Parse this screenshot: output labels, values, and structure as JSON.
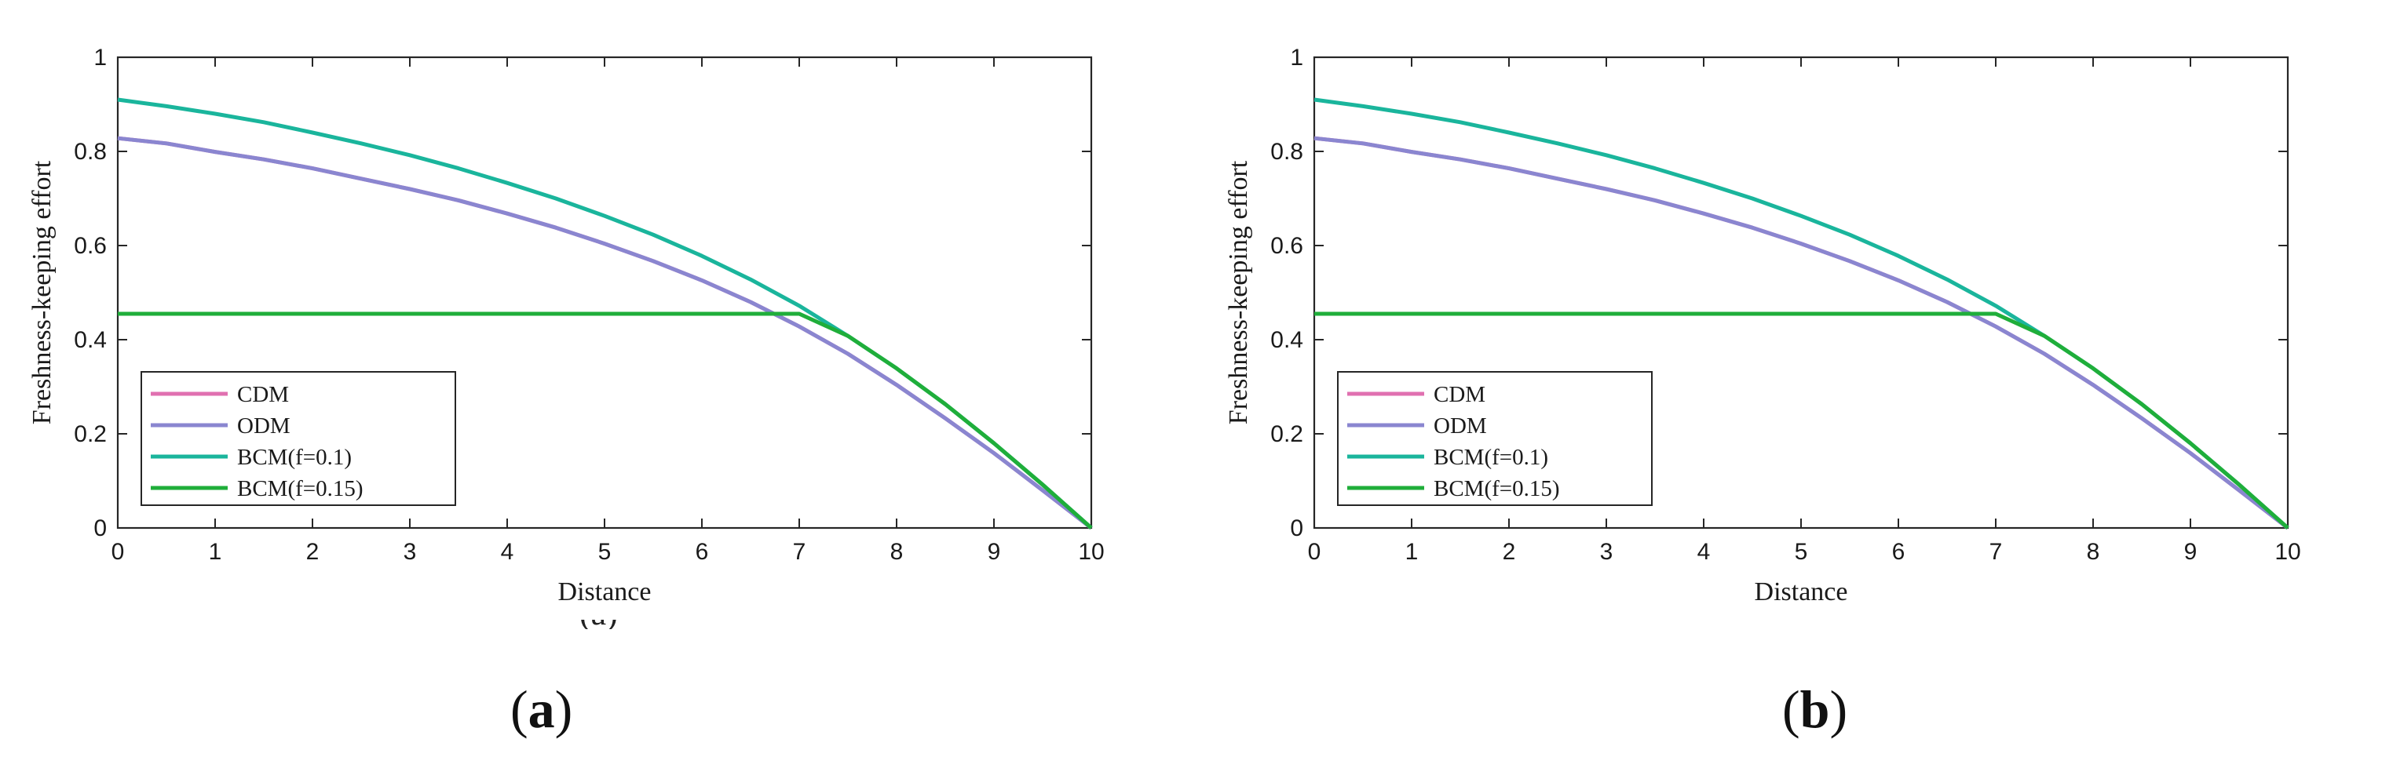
{
  "chart_data": [
    {
      "type": "line",
      "panel": "(a)",
      "xlabel": "Distance",
      "ylabel": "Freshness-keeping effort",
      "xlim": [
        0,
        10
      ],
      "ylim": [
        0,
        1
      ],
      "xticks": [
        0,
        1,
        2,
        3,
        4,
        5,
        6,
        7,
        8,
        9,
        10
      ],
      "yticks": [
        0,
        0.2,
        0.4,
        0.6,
        0.8,
        1
      ],
      "ytick_labels": [
        "0",
        "0.2",
        "0.4",
        "0.6",
        "0.8",
        "1"
      ],
      "legend_position": "bottom-left",
      "x": [
        0,
        0.5,
        1,
        1.5,
        2,
        2.5,
        3,
        3.5,
        4,
        4.5,
        5,
        5.5,
        6,
        6.5,
        7,
        7.5,
        8,
        8.5,
        9,
        9.5,
        10
      ],
      "series": [
        {
          "name": "CDM",
          "color": "#e070b0",
          "values": [
            0.828,
            0.817,
            0.799,
            0.783,
            0.764,
            0.742,
            0.72,
            0.696,
            0.668,
            0.638,
            0.604,
            0.567,
            0.526,
            0.48,
            0.428,
            0.37,
            0.304,
            0.233,
            0.159,
            0.08,
            0.0
          ]
        },
        {
          "name": "ODM",
          "color": "#8a86d0",
          "values": [
            0.828,
            0.817,
            0.799,
            0.783,
            0.764,
            0.742,
            0.72,
            0.696,
            0.668,
            0.638,
            0.604,
            0.567,
            0.526,
            0.48,
            0.428,
            0.37,
            0.304,
            0.233,
            0.159,
            0.08,
            0.0
          ]
        },
        {
          "name": "BCM(f=0.1)",
          "color": "#1ab59c",
          "values": [
            0.91,
            0.896,
            0.88,
            0.862,
            0.84,
            0.817,
            0.792,
            0.764,
            0.733,
            0.7,
            0.663,
            0.623,
            0.578,
            0.528,
            0.472,
            0.408,
            0.339,
            0.263,
            0.18,
            0.092,
            0.0
          ]
        },
        {
          "name": "BCM(f=0.15)",
          "color": "#1fae3a",
          "values": [
            0.455,
            0.455,
            0.455,
            0.455,
            0.455,
            0.455,
            0.455,
            0.455,
            0.455,
            0.455,
            0.455,
            0.455,
            0.455,
            0.455,
            0.455,
            0.408,
            0.339,
            0.263,
            0.18,
            0.092,
            0.0
          ]
        }
      ]
    },
    {
      "type": "line",
      "panel": "(b)",
      "xlabel": "Distance",
      "ylabel": "Freshness-keeping effort",
      "xlim": [
        0,
        10
      ],
      "ylim": [
        0,
        1
      ],
      "xticks": [
        0,
        1,
        2,
        3,
        4,
        5,
        6,
        7,
        8,
        9,
        10
      ],
      "yticks": [
        0,
        0.2,
        0.4,
        0.6,
        0.8,
        1
      ],
      "ytick_labels": [
        "0",
        "0.2",
        "0.4",
        "0.6",
        "0.8",
        "1"
      ],
      "legend_position": "bottom-left",
      "x": [
        0,
        0.5,
        1,
        1.5,
        2,
        2.5,
        3,
        3.5,
        4,
        4.5,
        5,
        5.5,
        6,
        6.5,
        7,
        7.5,
        8,
        8.5,
        9,
        9.5,
        10
      ],
      "series": [
        {
          "name": "CDM",
          "color": "#e070b0",
          "values": [
            0.828,
            0.817,
            0.799,
            0.783,
            0.764,
            0.742,
            0.72,
            0.696,
            0.668,
            0.638,
            0.604,
            0.567,
            0.526,
            0.48,
            0.428,
            0.37,
            0.304,
            0.233,
            0.159,
            0.08,
            0.0
          ]
        },
        {
          "name": "ODM",
          "color": "#8a86d0",
          "values": [
            0.828,
            0.817,
            0.799,
            0.783,
            0.764,
            0.742,
            0.72,
            0.696,
            0.668,
            0.638,
            0.604,
            0.567,
            0.526,
            0.48,
            0.428,
            0.37,
            0.304,
            0.233,
            0.159,
            0.08,
            0.0
          ]
        },
        {
          "name": "BCM(f=0.1)",
          "color": "#1ab59c",
          "values": [
            0.91,
            0.896,
            0.88,
            0.862,
            0.84,
            0.817,
            0.792,
            0.764,
            0.733,
            0.7,
            0.663,
            0.623,
            0.578,
            0.528,
            0.472,
            0.408,
            0.339,
            0.263,
            0.18,
            0.092,
            0.0
          ]
        },
        {
          "name": "BCM(f=0.15)",
          "color": "#1fae3a",
          "values": [
            0.455,
            0.455,
            0.455,
            0.455,
            0.455,
            0.455,
            0.455,
            0.455,
            0.455,
            0.455,
            0.455,
            0.455,
            0.455,
            0.455,
            0.455,
            0.408,
            0.339,
            0.263,
            0.18,
            0.092,
            0.0
          ]
        }
      ]
    }
  ],
  "panel_labels": [
    {
      "letter": "a"
    },
    {
      "letter": "b"
    }
  ],
  "artifact_fragment": "(a)"
}
